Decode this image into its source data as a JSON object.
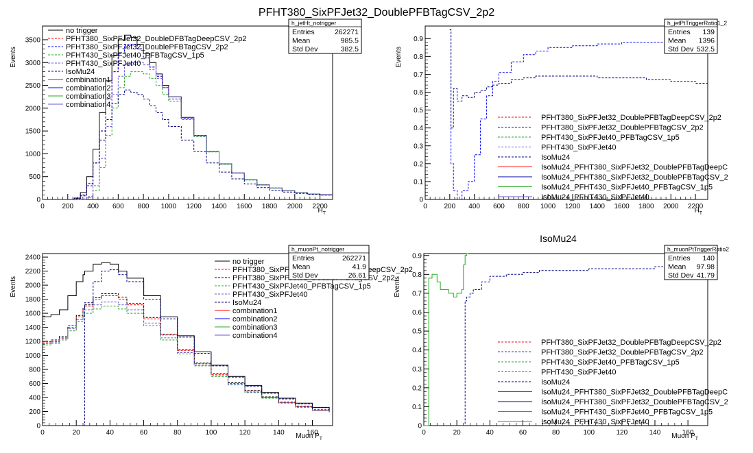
{
  "chart_data": [
    {
      "type": "line",
      "title": "",
      "stats": {
        "name": "h_jetHt_notrigger",
        "rows": [
          [
            "Entries",
            "262271"
          ],
          [
            "Mean",
            "985.5"
          ],
          [
            "Std Dev",
            "382.5"
          ]
        ]
      },
      "xlabel": "H_T",
      "ylabel": "Events",
      "xlim": [
        0,
        2300
      ],
      "ylim": [
        0,
        3800
      ],
      "xticks": [
        0,
        200,
        400,
        600,
        800,
        1000,
        1200,
        1400,
        1600,
        1800,
        2000,
        2200
      ],
      "yticks": [
        0,
        500,
        1000,
        1500,
        2000,
        2500,
        3000,
        3500
      ],
      "legend": "top-left",
      "x": [
        0,
        100,
        200,
        250,
        300,
        350,
        400,
        450,
        500,
        550,
        600,
        650,
        700,
        750,
        800,
        850,
        900,
        950,
        1000,
        1100,
        1200,
        1300,
        1400,
        1500,
        1600,
        1700,
        1800,
        1900,
        2000,
        2100,
        2200,
        2300
      ],
      "series": [
        {
          "name": "no trigger",
          "color": "#000000",
          "style": "solid",
          "values": [
            0,
            0,
            0,
            30,
            150,
            500,
            1100,
            1900,
            2600,
            3150,
            3500,
            3600,
            3550,
            3400,
            3200,
            3000,
            2750,
            2500,
            2250,
            1800,
            1400,
            1050,
            780,
            580,
            430,
            320,
            250,
            190,
            150,
            120,
            100,
            80
          ]
        },
        {
          "name": "PFHT380_SixPFJet32_DoubleDFBTagDeepCSV_2p2",
          "color": "#ff0000",
          "style": "dashed",
          "values": [
            0,
            0,
            0,
            10,
            80,
            300,
            800,
            1500,
            2200,
            2800,
            3200,
            3400,
            3400,
            3300,
            3100,
            2900,
            2700,
            2450,
            2200,
            1780,
            1390,
            1050,
            780,
            580,
            430,
            320,
            250,
            190,
            150,
            120,
            100,
            80
          ]
        },
        {
          "name": "PFHT380_SixPFJet32_DoublePFBTagCSV_2p2",
          "color": "#0000ff",
          "style": "dashed",
          "values": [
            0,
            0,
            0,
            10,
            80,
            300,
            800,
            1500,
            2200,
            2800,
            3200,
            3400,
            3400,
            3300,
            3100,
            2900,
            2700,
            2450,
            2200,
            1780,
            1390,
            1050,
            780,
            580,
            430,
            320,
            250,
            190,
            150,
            120,
            100,
            80
          ]
        },
        {
          "name": "PFHT430_SixPFJet40_PFBTagCSV_1p5",
          "color": "#22aa22",
          "style": "dashed",
          "values": [
            0,
            0,
            0,
            0,
            5,
            40,
            200,
            700,
            1400,
            2000,
            2450,
            2700,
            2800,
            2800,
            2750,
            2650,
            2500,
            2300,
            2150,
            1750,
            1380,
            1040,
            770,
            575,
            425,
            318,
            248,
            188,
            148,
            118,
            98,
            78
          ]
        },
        {
          "name": "PFHT430_SixPFJet40",
          "color": "#6a5acd",
          "style": "dashed",
          "values": [
            0,
            0,
            0,
            0,
            10,
            60,
            300,
            900,
            1600,
            2300,
            2700,
            2950,
            3000,
            3000,
            2950,
            2850,
            2650,
            2450,
            2250,
            1790,
            1400,
            1050,
            780,
            580,
            430,
            320,
            250,
            190,
            150,
            120,
            100,
            80
          ]
        },
        {
          "name": "IsoMu24",
          "color": "#000080",
          "style": "dashed",
          "values": [
            0,
            0,
            0,
            20,
            100,
            350,
            800,
            1300,
            1750,
            2100,
            2300,
            2400,
            2350,
            2300,
            2200,
            2050,
            1900,
            1750,
            1600,
            1300,
            1050,
            800,
            600,
            450,
            340,
            260,
            200,
            160,
            130,
            110,
            95,
            80
          ]
        }
      ],
      "legend_extra": [
        {
          "name": "combination1",
          "color": "#ff0000"
        },
        {
          "name": "combination2",
          "color": "#0000ff"
        },
        {
          "name": "combination3",
          "color": "#22aa22"
        },
        {
          "name": "combination4",
          "color": "#6a5acd"
        }
      ]
    },
    {
      "type": "line",
      "title": "PFHT380_SixPFJet32_DoublePFBTagCSV_2p2",
      "stats": {
        "name": "h_jetPtTriggerRatio1_2",
        "rows": [
          [
            "Entries",
            "139"
          ],
          [
            "Mean",
            "1396"
          ],
          [
            "Std Dev",
            "532.5"
          ]
        ]
      },
      "xlabel": "H_T",
      "ylabel": "Events",
      "xlim": [
        0,
        2300
      ],
      "ylim": [
        0,
        0.97
      ],
      "xticks": [
        0,
        200,
        400,
        600,
        800,
        1000,
        1200,
        1400,
        1600,
        1800,
        2000,
        2200
      ],
      "yticks": [
        0,
        0.1,
        0.2,
        0.3,
        0.4,
        0.5,
        0.6,
        0.7,
        0.8,
        0.9
      ],
      "legend": "bottom-right",
      "x": [
        200,
        210,
        230,
        260,
        300,
        350,
        400,
        450,
        500,
        550,
        600,
        700,
        800,
        900,
        1000,
        1200,
        1400,
        1600,
        1800,
        2000,
        2200,
        2300
      ],
      "series": [
        {
          "name": "PFHT380_SixPFJet32_DoublePFBTagCSV_2p2",
          "color": "#0000ff",
          "style": "dashed",
          "values": [
            0.95,
            0.2,
            0.05,
            0.0,
            0.05,
            0.1,
            0.25,
            0.45,
            0.58,
            0.66,
            0.71,
            0.77,
            0.81,
            0.83,
            0.85,
            0.86,
            0.87,
            0.88,
            0.88,
            0.89,
            0.89,
            0.9
          ]
        },
        {
          "name": "IsoMu24",
          "color": "#000080",
          "style": "dashed",
          "values": [
            0.95,
            0.4,
            0.62,
            0.55,
            0.58,
            0.57,
            0.6,
            0.61,
            0.63,
            0.64,
            0.65,
            0.67,
            0.68,
            0.69,
            0.69,
            0.69,
            0.68,
            0.68,
            0.67,
            0.66,
            0.65,
            0.65
          ]
        }
      ],
      "legend_entries": [
        {
          "name": "PFHT380_SixPFJet32_DoublePFBTagDeepCSV_2p2",
          "color": "#ff0000",
          "style": "dashed"
        },
        {
          "name": "PFHT380_SixPFJet32_DoublePFBTagCSV_2p2",
          "color": "#0000aa",
          "style": "dashed"
        },
        {
          "name": "PFHT430_SixPFJet40_PFBTagCSV_1p5",
          "color": "#22aa22",
          "style": "dashed"
        },
        {
          "name": "PFHT430_SixPFJet40",
          "color": "#6a5acd",
          "style": "dashed"
        },
        {
          "name": "IsoMu24",
          "color": "#000080",
          "style": "dashed"
        },
        {
          "name": "IsoMu24_PFHT380_SixPFJet32_DoublePFBTagDeepC",
          "color": "#ff0000",
          "style": "solid"
        },
        {
          "name": "IsoMu24_PFHT380_SixPFJet32_DoublePFBTagCSV_2",
          "color": "#0000aa",
          "style": "solid"
        },
        {
          "name": "IsoMu24_PFHT430_SixPFJet40_PFBTagCSV_1p5",
          "color": "#22aa22",
          "style": "solid"
        },
        {
          "name": "IsoMu24_PFHT430_SixPFJet40",
          "color": "#6a5acd",
          "style": "solid"
        }
      ]
    },
    {
      "type": "line",
      "title": "",
      "stats": {
        "name": "h_muonPt_notrigger",
        "rows": [
          [
            "Entries",
            "262271"
          ],
          [
            "Mean",
            "41.9"
          ],
          [
            "Std Dev",
            "26.61"
          ]
        ]
      },
      "xlabel": "Muon P_T",
      "ylabel": "Events",
      "xlim": [
        0,
        172
      ],
      "ylim": [
        0,
        2450
      ],
      "xticks": [
        0,
        20,
        40,
        60,
        80,
        100,
        120,
        140,
        160
      ],
      "yticks": [
        0,
        200,
        400,
        600,
        800,
        1000,
        1200,
        1400,
        1600,
        1800,
        2000,
        2200,
        2400
      ],
      "legend": "top-right",
      "x": [
        0,
        5,
        10,
        15,
        20,
        24,
        25,
        30,
        35,
        40,
        45,
        50,
        60,
        70,
        80,
        90,
        100,
        110,
        120,
        130,
        140,
        150,
        160,
        170
      ],
      "series": [
        {
          "name": "no trigger",
          "color": "#000000",
          "style": "solid",
          "values": [
            1550,
            1580,
            1650,
            1850,
            2050,
            2150,
            2200,
            2300,
            2320,
            2300,
            2200,
            2100,
            1850,
            1550,
            1280,
            1050,
            860,
            700,
            570,
            470,
            390,
            320,
            260,
            220
          ]
        },
        {
          "name": "PFHT380_SixPFJet32_DoublePFBTagDeepCSV_2p2",
          "color": "#ff0000",
          "style": "dashed",
          "values": [
            1180,
            1200,
            1250,
            1400,
            1550,
            1650,
            1700,
            1800,
            1850,
            1850,
            1800,
            1720,
            1520,
            1290,
            1070,
            880,
            730,
            600,
            490,
            400,
            330,
            270,
            220,
            190
          ]
        },
        {
          "name": "PFHT380_SixPFJet32_DoublePFBTagCSV_2p2",
          "color": "#000000",
          "style": "dashed",
          "values": [
            1200,
            1220,
            1270,
            1420,
            1570,
            1670,
            1720,
            1820,
            1880,
            1880,
            1830,
            1740,
            1540,
            1300,
            1080,
            890,
            740,
            610,
            500,
            410,
            335,
            275,
            225,
            195
          ]
        },
        {
          "name": "PFHT430_SixPFJet40_PFBTagCSV_1p5",
          "color": "#22aa22",
          "style": "dashed",
          "values": [
            1150,
            1170,
            1220,
            1350,
            1480,
            1560,
            1600,
            1660,
            1700,
            1700,
            1660,
            1600,
            1420,
            1220,
            1020,
            850,
            700,
            580,
            470,
            390,
            320,
            260,
            215,
            185
          ]
        },
        {
          "name": "PFHT430_SixPFJet40",
          "color": "#6a5acd",
          "style": "dashed",
          "values": [
            1170,
            1190,
            1240,
            1380,
            1510,
            1600,
            1650,
            1720,
            1760,
            1760,
            1720,
            1650,
            1460,
            1250,
            1040,
            860,
            710,
            585,
            475,
            395,
            325,
            265,
            218,
            188
          ]
        },
        {
          "name": "IsoMu24",
          "color": "#000080",
          "style": "dashed",
          "values": [
            0,
            0,
            0,
            0,
            0,
            0,
            1750,
            2050,
            2200,
            2220,
            2150,
            2050,
            1800,
            1520,
            1260,
            1030,
            850,
            690,
            560,
            460,
            380,
            310,
            255,
            215
          ]
        }
      ],
      "legend_extra": [
        {
          "name": "combination1",
          "color": "#ff0000"
        },
        {
          "name": "combination2",
          "color": "#0000ff"
        },
        {
          "name": "combination3",
          "color": "#22aa22"
        },
        {
          "name": "combination4",
          "color": "#6a5acd"
        }
      ]
    },
    {
      "type": "line",
      "title": "IsoMu24",
      "stats": {
        "name": "h_muonPtTriggerRatio2",
        "rows": [
          [
            "Entries",
            "140"
          ],
          [
            "Mean",
            "97.98"
          ],
          [
            "Std Dev",
            "41.79"
          ]
        ]
      },
      "xlabel": "Muon P_T",
      "ylabel": "Events",
      "xlim": [
        0,
        172
      ],
      "ylim": [
        0,
        0.91
      ],
      "xticks": [
        0,
        20,
        40,
        60,
        80,
        100,
        120,
        140,
        160
      ],
      "yticks": [
        0,
        0.1,
        0.2,
        0.3,
        0.4,
        0.5,
        0.6,
        0.7,
        0.8,
        0.9
      ],
      "legend": "bottom-right",
      "series": [
        {
          "name": "IsoMu24_PFHT430_SixPFJet40_PFBTagCSV_1p5",
          "color": "#22aa22",
          "style": "solid",
          "x": [
            0,
            2,
            3,
            5,
            8,
            10,
            13,
            15,
            18,
            20,
            23,
            24,
            25,
            26,
            27
          ],
          "values": [
            0,
            0,
            0.78,
            0.8,
            0.76,
            0.72,
            0.72,
            0.7,
            0.68,
            0.7,
            0.72,
            0.85,
            0.9,
            0.92,
            0.92
          ]
        },
        {
          "name": "IsoMu24",
          "color": "#000080",
          "style": "dashed",
          "x": [
            24,
            25,
            26,
            28,
            30,
            35,
            40,
            50,
            60,
            70,
            80,
            90,
            100,
            110,
            120,
            130,
            140,
            150,
            160,
            170
          ],
          "values": [
            0,
            0.66,
            0.68,
            0.7,
            0.72,
            0.76,
            0.79,
            0.8,
            0.81,
            0.82,
            0.82,
            0.82,
            0.83,
            0.83,
            0.83,
            0.83,
            0.84,
            0.84,
            0.84,
            0.84
          ]
        }
      ],
      "legend_entries": [
        {
          "name": "PFHT380_SixPFJet32_DoublePFBTagDeepCSV_2p2",
          "color": "#ff0000",
          "style": "dashed"
        },
        {
          "name": "PFHT380_SixPFJet32_DoublePFBTagCSV_2p2",
          "color": "#0000aa",
          "style": "dashed"
        },
        {
          "name": "PFHT430_SixPFJet40_PFBTagCSV_1p5",
          "color": "#22aa22",
          "style": "dashed"
        },
        {
          "name": "PFHT430_SixPFJet40",
          "color": "#6a5acd",
          "style": "dashed"
        },
        {
          "name": "IsoMu24",
          "color": "#000080",
          "style": "dashed"
        },
        {
          "name": "IsoMu24_PFHT380_SixPFJet32_DoublePFBTagDeepC",
          "color": "#ff0000",
          "style": "solid"
        },
        {
          "name": "IsoMu24_PFHT380_SixPFJet32_DoublePFBTagCSV_2",
          "color": "#0000aa",
          "style": "solid"
        },
        {
          "name": "IsoMu24_PFHT430_SixPFJet40_PFBTagCSV_1p5",
          "color": "#22aa22",
          "style": "solid"
        },
        {
          "name": "IsoMu24_PFHT430_SixPFJet40",
          "color": "#6a5acd",
          "style": "solid"
        }
      ]
    }
  ]
}
